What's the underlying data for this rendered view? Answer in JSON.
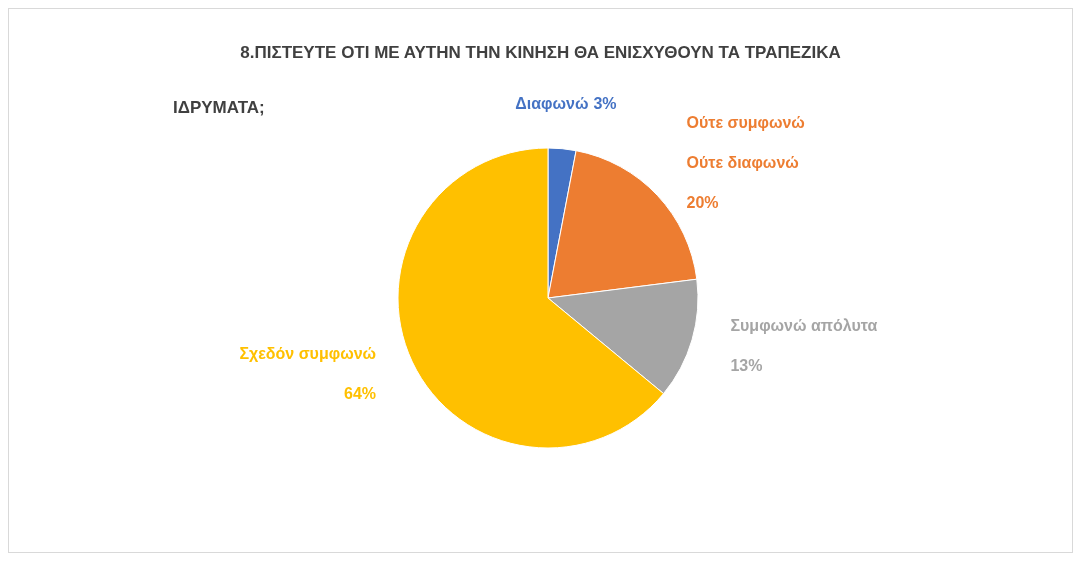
{
  "chart_data": {
    "type": "pie",
    "title": "8.ΠΙΣΤΕΥΤΕ ΟΤΙ ΜΕ ΑΥΤΗΝ ΤΗΝ ΚΙΝΗΣΗ ΘΑ ΕΝΙΣΧΥΘΟΥΝ ΤΑ ΤΡΑΠΕΖΙΚΑ ΙΔΡΥΜΑΤΑ;",
    "categories": [
      "Διαφωνώ",
      "Ούτε συμφωνώ Ούτε διαφωνώ",
      "Συμφωνώ απόλυτα",
      "Σχεδόν συμφωνώ"
    ],
    "values": [
      3,
      20,
      13,
      64
    ],
    "value_labels": [
      "3%",
      "20%",
      "13%",
      "64%"
    ],
    "colors": [
      "#4472c4",
      "#ed7d31",
      "#a5a5a5",
      "#ffc000"
    ]
  }
}
